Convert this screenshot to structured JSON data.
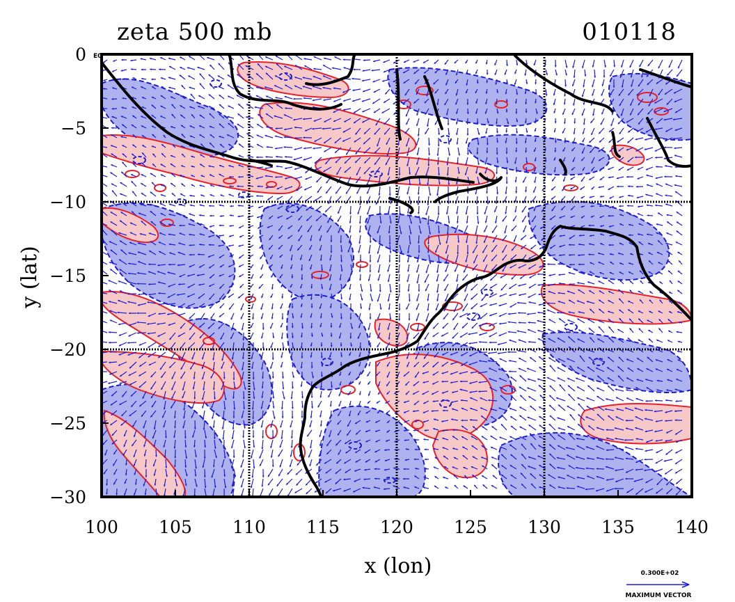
{
  "plot": {
    "title_left": "zeta 500 mb",
    "title_right": "010118",
    "corner_tag": "E0",
    "xlabel": "x (lon)",
    "ylabel": "y (lat)",
    "xlim": [
      100,
      140
    ],
    "ylim": [
      -30,
      0
    ],
    "xticks": [
      100,
      105,
      110,
      115,
      120,
      125,
      130,
      135,
      140
    ],
    "yticks": [
      0,
      -5,
      -10,
      -15,
      -20,
      -25,
      -30
    ],
    "grid_x": [
      110,
      120,
      130
    ],
    "grid_y": [
      -10,
      -20
    ],
    "vector_key": {
      "magnitude_label": "0.300E+02",
      "caption": "MAXIMUM VECTOR"
    },
    "colors": {
      "positive_fill": "#f7c8c8",
      "positive_contour": "#e8202a",
      "negative_fill": "#aeb2ee",
      "negative_contour": "#1c1ccc",
      "vectors": "#1c1cdd",
      "coastline": "#000000"
    }
  }
}
